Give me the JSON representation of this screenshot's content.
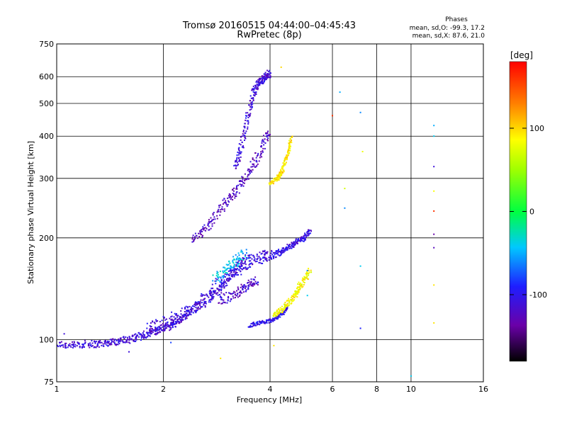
{
  "header": {
    "title_line1": "Tromsø 20160515 04:44:00–04:45:43",
    "title_line2": "RwPretec (8p)"
  },
  "phase_stats": {
    "heading": "Phases",
    "o_line": "mean, sd,O: -99.3, 17.2",
    "x_line": "mean, sd,X:  87.6, 21.0"
  },
  "colorbar": {
    "unit": "[deg]",
    "ticks": [
      "100",
      "0",
      "-100"
    ],
    "tick_values": [
      100,
      0,
      -100
    ],
    "range": [
      -180,
      180
    ]
  },
  "chart_data": {
    "type": "scatter",
    "title": "Tromsø 20160515 04:44:00–04:45:43",
    "subtitle": "RwPretec (8p)",
    "xlabel": "Frequency [MHz]",
    "ylabel": "Stationary phase Virtual Height [km]",
    "x_scale": "log",
    "y_scale": "log",
    "xlim": [
      1,
      16
    ],
    "ylim": [
      75,
      750
    ],
    "x_ticks": [
      1,
      2,
      4,
      6,
      8,
      10,
      16
    ],
    "x_tick_labels": [
      "1",
      "2",
      "4",
      "6",
      "8",
      "10",
      "16"
    ],
    "y_ticks": [
      75,
      100,
      200,
      300,
      400,
      500,
      600,
      750
    ],
    "y_tick_labels": [
      "75",
      "100",
      "200",
      "300",
      "400",
      "500",
      "600",
      "750"
    ],
    "grid": true,
    "color_meaning": "phase [deg]",
    "traces": [
      {
        "x": [
          1.0,
          1.1,
          1.2,
          1.3,
          1.4,
          1.5,
          1.6,
          1.7,
          1.8,
          1.9,
          2.0,
          2.1,
          2.2,
          2.3,
          2.4,
          2.6,
          2.8,
          3.0,
          3.2,
          3.4
        ],
        "y": [
          97,
          96,
          97,
          97,
          98,
          99,
          100,
          102,
          104,
          106,
          108,
          110,
          113,
          117,
          122,
          128,
          136,
          146,
          160,
          175
        ],
        "phase": -112,
        "spread": 0.05
      },
      {
        "x": [
          1.8,
          2.0,
          2.2,
          2.4,
          2.6,
          2.8,
          3.0,
          3.2,
          3.4,
          3.6,
          3.8,
          4.0
        ],
        "y": [
          108,
          112,
          117,
          124,
          132,
          142,
          152,
          160,
          168,
          172,
          175,
          178
        ],
        "phase": -110,
        "spread": 0.08
      },
      {
        "x": [
          2.4,
          2.6,
          2.8,
          3.0,
          3.2,
          3.4,
          3.6,
          3.8,
          4.0
        ],
        "y": [
          195,
          210,
          230,
          255,
          275,
          300,
          330,
          370,
          420
        ],
        "phase": -122,
        "spread": 0.06
      },
      {
        "x": [
          3.2,
          3.3,
          3.4,
          3.5,
          3.6,
          3.7,
          3.8,
          3.9,
          4.0
        ],
        "y": [
          320,
          360,
          420,
          480,
          540,
          570,
          590,
          600,
          615
        ],
        "phase": -112,
        "spread": 0.05
      },
      {
        "x": [
          3.5,
          3.7,
          3.9,
          4.1,
          4.3,
          4.5
        ],
        "y": [
          110,
          112,
          113,
          115,
          118,
          125
        ],
        "phase": -102,
        "spread": 0.025
      },
      {
        "x": [
          4.1,
          4.3,
          4.5,
          4.7,
          4.8,
          5.0,
          5.2
        ],
        "y": [
          118,
          122,
          128,
          135,
          142,
          150,
          160
        ],
        "phase": 85,
        "spread": 0.04
      },
      {
        "x": [
          4.0,
          4.2,
          4.4,
          4.6,
          4.8,
          5.0,
          5.2
        ],
        "y": [
          175,
          180,
          185,
          190,
          196,
          200,
          210
        ],
        "phase": -108,
        "spread": 0.04
      },
      {
        "x": [
          4.0,
          4.2,
          4.3,
          4.4,
          4.5,
          4.6
        ],
        "y": [
          290,
          300,
          310,
          330,
          360,
          400
        ],
        "phase": 95,
        "spread": 0.03
      },
      {
        "x": [
          2.8,
          3.0,
          3.2,
          3.4
        ],
        "y": [
          150,
          160,
          170,
          180
        ],
        "phase": -45,
        "spread": 0.07
      },
      {
        "x": [
          2.9,
          3.1,
          3.3,
          3.5,
          3.7
        ],
        "y": [
          130,
          135,
          140,
          145,
          150
        ],
        "phase": -118,
        "spread": 0.06
      }
    ],
    "sparse_points": [
      {
        "x": 6.3,
        "y": 540,
        "phase": -50
      },
      {
        "x": 7.2,
        "y": 470,
        "phase": -60
      },
      {
        "x": 7.3,
        "y": 360,
        "phase": 80
      },
      {
        "x": 6.5,
        "y": 280,
        "phase": 70
      },
      {
        "x": 6.5,
        "y": 245,
        "phase": -60
      },
      {
        "x": 7.2,
        "y": 165,
        "phase": -40
      },
      {
        "x": 7.2,
        "y": 108,
        "phase": -90
      },
      {
        "x": 6.0,
        "y": 460,
        "phase": 160
      },
      {
        "x": 10.0,
        "y": 78,
        "phase": -40
      },
      {
        "x": 11.6,
        "y": 430,
        "phase": -50
      },
      {
        "x": 11.6,
        "y": 400,
        "phase": -40
      },
      {
        "x": 11.6,
        "y": 325,
        "phase": -110
      },
      {
        "x": 11.6,
        "y": 275,
        "phase": 85
      },
      {
        "x": 11.6,
        "y": 240,
        "phase": 160
      },
      {
        "x": 11.6,
        "y": 205,
        "phase": -135
      },
      {
        "x": 11.6,
        "y": 187,
        "phase": -125
      },
      {
        "x": 11.6,
        "y": 145,
        "phase": 95
      },
      {
        "x": 11.6,
        "y": 112,
        "phase": 95
      },
      {
        "x": 1.05,
        "y": 104,
        "phase": -110
      },
      {
        "x": 1.6,
        "y": 92,
        "phase": -110
      },
      {
        "x": 2.1,
        "y": 98,
        "phase": -80
      },
      {
        "x": 2.9,
        "y": 88,
        "phase": 95
      },
      {
        "x": 4.1,
        "y": 96,
        "phase": 95
      },
      {
        "x": 4.3,
        "y": 640,
        "phase": 100
      },
      {
        "x": 5.1,
        "y": 160,
        "phase": -60
      },
      {
        "x": 5.1,
        "y": 135,
        "phase": -40
      }
    ]
  }
}
